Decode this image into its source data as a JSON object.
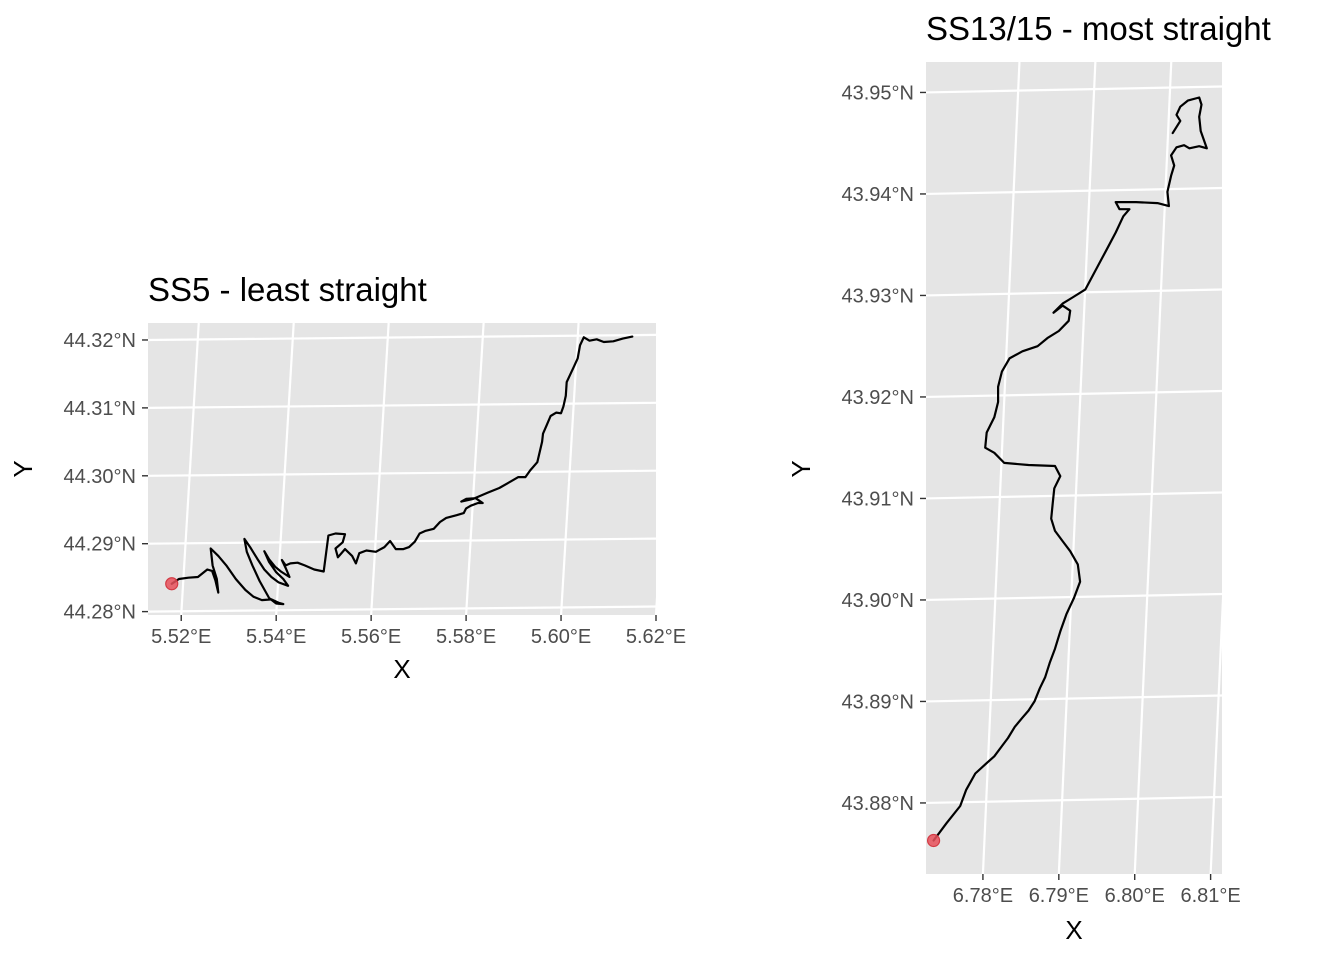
{
  "chart_data": [
    {
      "type": "line",
      "title": "SS5 - least straight",
      "xlabel": "X",
      "ylabel": "Y",
      "x_ticks": [
        "5.52°E",
        "5.54°E",
        "5.56°E",
        "5.58°E",
        "5.60°E",
        "5.62°E"
      ],
      "y_ticks": [
        "44.28°N",
        "44.29°N",
        "44.30°N",
        "44.31°N",
        "44.32°N"
      ],
      "xlim": [
        5.513,
        5.62
      ],
      "ylim": [
        44.2795,
        44.3225
      ],
      "grid": true,
      "start_marker": {
        "lon": 5.518,
        "lat": 44.2841,
        "color": "#e8505b"
      },
      "series": [
        {
          "line_color": "#000000",
          "points": [
            [
              5.518,
              44.2841
            ],
            [
              5.5195,
              44.2848
            ],
            [
              5.5215,
              44.285
            ],
            [
              5.5235,
              44.2851
            ],
            [
              5.5255,
              44.2862
            ],
            [
              5.5265,
              44.286
            ],
            [
              5.5272,
              44.2846
            ],
            [
              5.5278,
              44.2828
            ],
            [
              5.5275,
              44.2848
            ],
            [
              5.5266,
              44.2868
            ],
            [
              5.5262,
              44.2893
            ],
            [
              5.5278,
              44.2882
            ],
            [
              5.5295,
              44.2868
            ],
            [
              5.5315,
              44.2848
            ],
            [
              5.5335,
              44.2832
            ],
            [
              5.5352,
              44.2822
            ],
            [
              5.537,
              44.2817
            ],
            [
              5.539,
              44.2818
            ],
            [
              5.5405,
              44.2813
            ],
            [
              5.5415,
              44.2811
            ],
            [
              5.54,
              44.2812
            ],
            [
              5.5385,
              44.282
            ],
            [
              5.5365,
              44.2845
            ],
            [
              5.535,
              44.2868
            ],
            [
              5.5338,
              44.2888
            ],
            [
              5.5333,
              44.2907
            ],
            [
              5.5345,
              44.2895
            ],
            [
              5.536,
              44.2878
            ],
            [
              5.5375,
              44.2862
            ],
            [
              5.539,
              44.2851
            ],
            [
              5.5405,
              44.2843
            ],
            [
              5.5425,
              44.2838
            ],
            [
              5.5415,
              44.2848
            ],
            [
              5.54,
              44.2858
            ],
            [
              5.5385,
              44.2873
            ],
            [
              5.5375,
              44.2889
            ],
            [
              5.5385,
              44.2877
            ],
            [
              5.5398,
              44.2866
            ],
            [
              5.541,
              44.2859
            ],
            [
              5.5428,
              44.2851
            ],
            [
              5.542,
              44.2864
            ],
            [
              5.5412,
              44.2876
            ],
            [
              5.542,
              44.2868
            ],
            [
              5.543,
              44.2871
            ],
            [
              5.5445,
              44.2872
            ],
            [
              5.546,
              44.2868
            ],
            [
              5.548,
              44.2862
            ],
            [
              5.55,
              44.2859
            ],
            [
              5.5505,
              44.2885
            ],
            [
              5.551,
              44.2912
            ],
            [
              5.5525,
              44.2915
            ],
            [
              5.5545,
              44.2914
            ],
            [
              5.554,
              44.2902
            ],
            [
              5.5525,
              44.2893
            ],
            [
              5.553,
              44.288
            ],
            [
              5.5545,
              44.2892
            ],
            [
              5.556,
              44.2882
            ],
            [
              5.5568,
              44.2871
            ],
            [
              5.5575,
              44.2886
            ],
            [
              5.559,
              44.289
            ],
            [
              5.561,
              44.2888
            ],
            [
              5.5628,
              44.2895
            ],
            [
              5.564,
              44.2904
            ],
            [
              5.5652,
              44.2892
            ],
            [
              5.5668,
              44.2892
            ],
            [
              5.568,
              44.2895
            ],
            [
              5.5692,
              44.2903
            ],
            [
              5.5702,
              44.2915
            ],
            [
              5.5715,
              44.2919
            ],
            [
              5.5732,
              44.2922
            ],
            [
              5.5745,
              44.2932
            ],
            [
              5.5758,
              44.2938
            ],
            [
              5.578,
              44.2942
            ],
            [
              5.5795,
              44.2945
            ],
            [
              5.58,
              44.2952
            ],
            [
              5.581,
              44.2956
            ],
            [
              5.5825,
              44.296
            ],
            [
              5.5835,
              44.296
            ],
            [
              5.582,
              44.2967
            ],
            [
              5.58,
              44.2966
            ],
            [
              5.579,
              44.2962
            ],
            [
              5.5815,
              44.2966
            ],
            [
              5.5845,
              44.2975
            ],
            [
              5.587,
              44.2982
            ],
            [
              5.5895,
              44.2992
            ],
            [
              5.591,
              44.2998
            ],
            [
              5.5925,
              44.2998
            ],
            [
              5.5935,
              44.3008
            ],
            [
              5.595,
              44.302
            ],
            [
              5.5955,
              44.3035
            ],
            [
              5.596,
              44.305
            ],
            [
              5.5962,
              44.3062
            ],
            [
              5.597,
              44.3075
            ],
            [
              5.5978,
              44.3088
            ],
            [
              5.599,
              44.3093
            ],
            [
              5.6,
              44.3092
            ],
            [
              5.6005,
              44.3102
            ],
            [
              5.601,
              44.3118
            ],
            [
              5.6012,
              44.3138
            ],
            [
              5.602,
              44.315
            ],
            [
              5.6028,
              44.3162
            ],
            [
              5.6035,
              44.3173
            ],
            [
              5.604,
              44.3192
            ],
            [
              5.6048,
              44.3204
            ],
            [
              5.606,
              44.3199
            ],
            [
              5.6075,
              44.3201
            ],
            [
              5.609,
              44.3197
            ],
            [
              5.611,
              44.3198
            ],
            [
              5.613,
              44.3202
            ],
            [
              5.615,
              44.3205
            ]
          ]
        }
      ]
    },
    {
      "type": "line",
      "title": "SS13/15 - most straight",
      "xlabel": "X",
      "ylabel": "Y",
      "x_ticks": [
        "6.78°E",
        "6.79°E",
        "6.80°E",
        "6.81°E"
      ],
      "y_ticks": [
        "43.88°N",
        "43.89°N",
        "43.90°N",
        "43.91°N",
        "43.92°N",
        "43.93°N",
        "43.94°N",
        "43.95°N"
      ],
      "xlim": [
        6.7725,
        6.8115
      ],
      "ylim": [
        43.873,
        43.953
      ],
      "grid": true,
      "start_marker": {
        "lon": 6.7735,
        "lat": 43.8763,
        "color": "#e8505b"
      },
      "series": [
        {
          "line_color": "#000000",
          "points": [
            [
              6.7735,
              43.8763
            ],
            [
              6.7752,
              43.878
            ],
            [
              6.777,
              43.8797
            ],
            [
              6.7778,
              43.8813
            ],
            [
              6.779,
              43.8829
            ],
            [
              6.7803,
              43.8838
            ],
            [
              6.7815,
              43.8846
            ],
            [
              6.7825,
              43.8856
            ],
            [
              6.7833,
              43.8864
            ],
            [
              6.7842,
              43.8875
            ],
            [
              6.7852,
              43.8884
            ],
            [
              6.786,
              43.8891
            ],
            [
              6.7868,
              43.89
            ],
            [
              6.7875,
              43.8913
            ],
            [
              6.7882,
              43.8924
            ],
            [
              6.7888,
              43.8938
            ],
            [
              6.7895,
              43.8952
            ],
            [
              6.7902,
              43.8969
            ],
            [
              6.791,
              43.8986
            ],
            [
              6.792,
              43.9002
            ],
            [
              6.7928,
              43.9018
            ],
            [
              6.7925,
              43.9035
            ],
            [
              6.7915,
              43.9048
            ],
            [
              6.7905,
              43.9058
            ],
            [
              6.7895,
              43.9068
            ],
            [
              6.789,
              43.908
            ],
            [
              6.7892,
              43.9095
            ],
            [
              6.7894,
              43.911
            ],
            [
              6.7902,
              43.9122
            ],
            [
              6.7895,
              43.9132
            ],
            [
              6.786,
              43.9133
            ],
            [
              6.7828,
              43.9135
            ],
            [
              6.7815,
              43.9145
            ],
            [
              6.7803,
              43.915
            ],
            [
              6.7805,
              43.9165
            ],
            [
              6.7815,
              43.918
            ],
            [
              6.782,
              43.9195
            ],
            [
              6.782,
              43.921
            ],
            [
              6.7825,
              43.9225
            ],
            [
              6.7835,
              43.9238
            ],
            [
              6.7852,
              43.9245
            ],
            [
              6.7872,
              43.925
            ],
            [
              6.7885,
              43.9258
            ],
            [
              6.79,
              43.9265
            ],
            [
              6.7913,
              43.9275
            ],
            [
              6.7915,
              43.9285
            ],
            [
              6.7905,
              43.929
            ],
            [
              6.7893,
              43.9283
            ],
            [
              6.7905,
              43.9292
            ],
            [
              6.7918,
              43.9298
            ],
            [
              6.7935,
              43.9306
            ],
            [
              6.7945,
              43.932
            ],
            [
              6.7955,
              43.9334
            ],
            [
              6.7965,
              43.9348
            ],
            [
              6.7975,
              43.9362
            ],
            [
              6.7985,
              43.9378
            ],
            [
              6.7993,
              43.9385
            ],
            [
              6.798,
              43.9385
            ],
            [
              6.7975,
              43.9392
            ],
            [
              6.8002,
              43.9392
            ],
            [
              6.803,
              43.9391
            ],
            [
              6.8045,
              43.9388
            ],
            [
              6.8043,
              43.9402
            ],
            [
              6.8048,
              43.9418
            ],
            [
              6.8052,
              43.9428
            ],
            [
              6.8048,
              43.9438
            ],
            [
              6.8055,
              43.9446
            ],
            [
              6.8065,
              43.9448
            ],
            [
              6.8072,
              43.9445
            ],
            [
              6.8085,
              43.9447
            ],
            [
              6.8095,
              43.9445
            ],
            [
              6.8087,
              43.9462
            ],
            [
              6.8085,
              43.9476
            ],
            [
              6.8088,
              43.9488
            ],
            [
              6.8085,
              43.9495
            ],
            [
              6.807,
              43.9492
            ],
            [
              6.806,
              43.9486
            ],
            [
              6.8055,
              43.9478
            ],
            [
              6.806,
              43.9472
            ],
            [
              6.805,
              43.946
            ]
          ]
        }
      ]
    }
  ]
}
